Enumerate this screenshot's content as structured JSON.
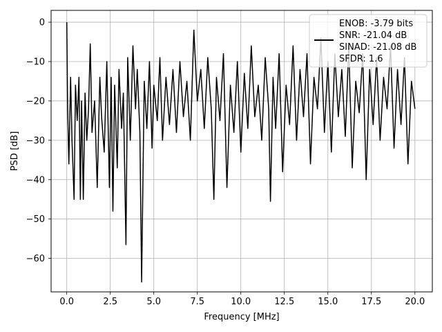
{
  "chart_data": {
    "type": "line",
    "title": "",
    "xlabel": "Frequency [MHz]",
    "ylabel": "PSD [dB]",
    "xlim": [
      -0.9,
      21.0
    ],
    "ylim": [
      -68.5,
      3.0
    ],
    "xticks": [
      0.0,
      2.5,
      5.0,
      7.5,
      10.0,
      12.5,
      15.0,
      17.5,
      20.0
    ],
    "xtick_labels": [
      "0.0",
      "2.5",
      "5.0",
      "7.5",
      "10.0",
      "12.5",
      "15.0",
      "17.5",
      "20.0"
    ],
    "yticks": [
      0,
      -10,
      -20,
      -30,
      -40,
      -50,
      -60
    ],
    "ytick_labels": [
      "0",
      "−10",
      "−20",
      "−30",
      "−40",
      "−50",
      "−60"
    ],
    "grid": true,
    "legend_position": "top-right",
    "legend_lines": [
      "ENOB: -3.79 bits",
      "SNR: -21.04 dB",
      "SINAD: -21.08 dB",
      "SFDR: 1.6"
    ],
    "series": [
      {
        "color": "#000000",
        "x": [
          0.0,
          0.05,
          0.12,
          0.22,
          0.3,
          0.42,
          0.5,
          0.6,
          0.7,
          0.78,
          0.85,
          0.95,
          1.05,
          1.15,
          1.25,
          1.35,
          1.45,
          1.6,
          1.75,
          1.9,
          2.0,
          2.15,
          2.3,
          2.45,
          2.55,
          2.65,
          2.75,
          2.9,
          3.0,
          3.15,
          3.25,
          3.4,
          3.5,
          3.65,
          3.8,
          3.95,
          4.05,
          4.2,
          4.3,
          4.45,
          4.6,
          4.75,
          4.9,
          5.0,
          5.2,
          5.35,
          5.5,
          5.7,
          5.9,
          6.1,
          6.3,
          6.5,
          6.7,
          6.9,
          7.1,
          7.3,
          7.5,
          7.7,
          7.9,
          8.1,
          8.3,
          8.45,
          8.6,
          8.8,
          9.0,
          9.2,
          9.4,
          9.6,
          9.8,
          10.0,
          10.2,
          10.4,
          10.6,
          10.8,
          11.0,
          11.2,
          11.4,
          11.6,
          11.7,
          11.85,
          12.0,
          12.2,
          12.4,
          12.6,
          12.8,
          13.0,
          13.2,
          13.4,
          13.6,
          13.8,
          14.0,
          14.2,
          14.4,
          14.6,
          14.8,
          15.0,
          15.2,
          15.4,
          15.6,
          15.8,
          16.0,
          16.2,
          16.4,
          16.6,
          16.8,
          17.0,
          17.2,
          17.4,
          17.6,
          17.8,
          18.0,
          18.2,
          18.4,
          18.6,
          18.8,
          19.0,
          19.2,
          19.4,
          19.6,
          19.8,
          20.0
        ],
        "y": [
          0.0,
          -22.0,
          -36.0,
          -14.0,
          -30.0,
          -45.0,
          -16.0,
          -25.0,
          -14.0,
          -45.0,
          -20.0,
          -45.0,
          -18.0,
          -30.0,
          -22.0,
          -5.5,
          -28.0,
          -20.0,
          -42.0,
          -14.0,
          -24.0,
          -33.0,
          -10.0,
          -42.0,
          -14.0,
          -48.0,
          -16.0,
          -37.0,
          -12.0,
          -27.0,
          -18.0,
          -56.5,
          -9.0,
          -30.0,
          -6.0,
          -22.0,
          -12.0,
          -28.0,
          -66.0,
          -15.0,
          -27.0,
          -10.0,
          -32.0,
          -16.0,
          -25.0,
          -9.0,
          -30.0,
          -14.0,
          -26.0,
          -12.0,
          -28.0,
          -10.0,
          -24.0,
          -15.0,
          -30.0,
          -2.0,
          -20.0,
          -12.0,
          -27.0,
          -9.0,
          -22.0,
          -45.0,
          -14.0,
          -25.0,
          -8.0,
          -42.0,
          -16.0,
          -28.0,
          -10.0,
          -33.0,
          -13.0,
          -27.0,
          -6.0,
          -24.0,
          -16.0,
          -30.0,
          -9.0,
          -22.0,
          -45.5,
          -14.0,
          -27.0,
          -8.0,
          -38.0,
          -16.0,
          -26.0,
          -6.0,
          -30.0,
          -12.0,
          -24.0,
          -8.0,
          -36.0,
          -14.0,
          -22.0,
          -4.0,
          -28.0,
          -10.0,
          -33.0,
          -8.0,
          -24.0,
          -12.0,
          -29.0,
          -6.0,
          -37.0,
          -15.0,
          -23.0,
          -8.0,
          -40.0,
          -12.0,
          -26.0,
          -9.0,
          -30.0,
          -14.0,
          -22.0,
          -6.0,
          -32.0,
          -12.0,
          -26.0,
          -9.0,
          -36.0,
          -15.0,
          -22.0
        ]
      }
    ]
  }
}
